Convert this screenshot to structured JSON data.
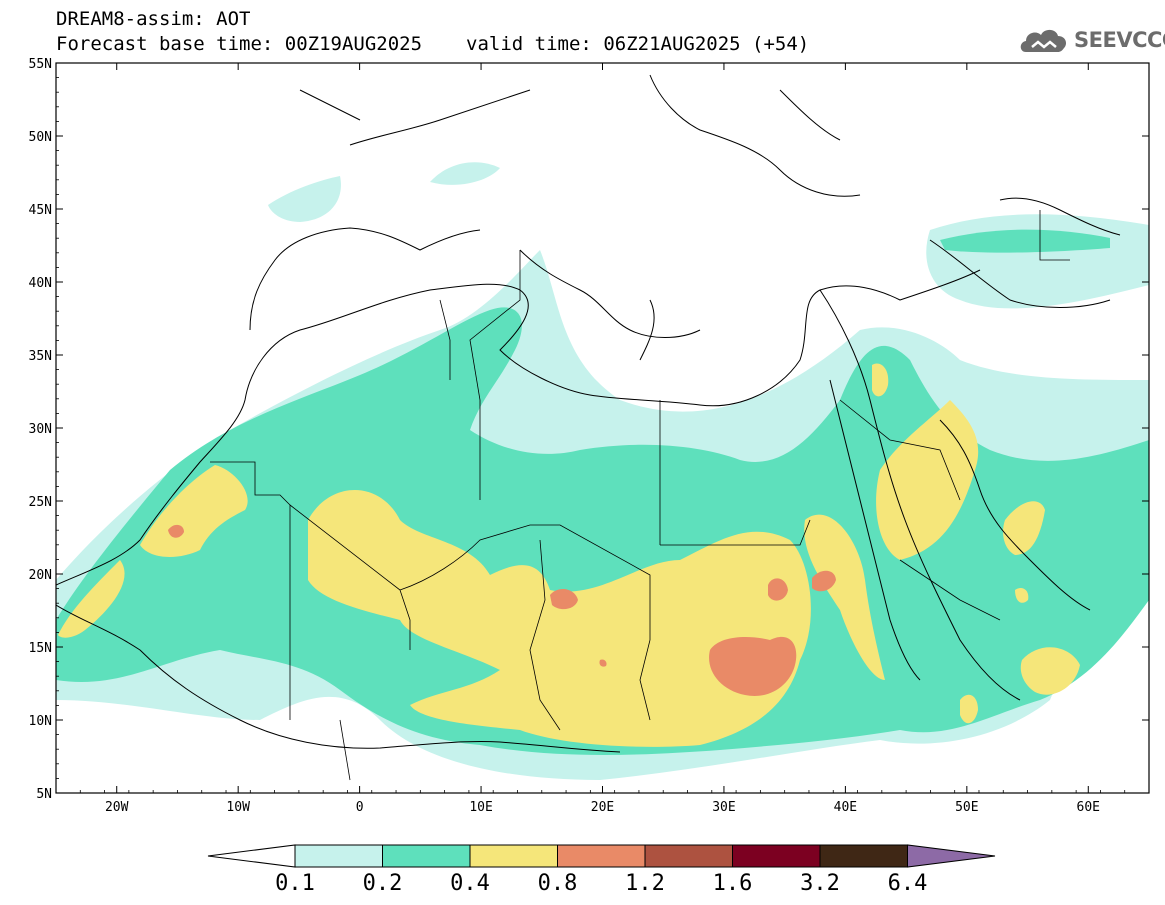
{
  "header": {
    "title_line1": "DREAM8-assim: AOT",
    "base_time": "Forecast base time: 00Z19AUG2025",
    "valid_time": "valid time: 06Z21AUG2025 (+54)"
  },
  "logo": {
    "text": "SEEVCCC",
    "icon": "cloud-icon",
    "color": "#6c6c6c"
  },
  "map": {
    "lat_range": [
      5,
      55
    ],
    "lon_range": [
      -25,
      65
    ],
    "lat_ticks": [
      "5N",
      "10N",
      "15N",
      "20N",
      "25N",
      "30N",
      "35N",
      "40N",
      "45N",
      "50N",
      "55N"
    ],
    "lon_ticks": [
      "20W",
      "10W",
      "0",
      "10E",
      "20E",
      "30E",
      "40E",
      "50E",
      "60E"
    ]
  },
  "colorbar": {
    "labels": [
      "0.1",
      "0.2",
      "0.4",
      "0.8",
      "1.2",
      "1.6",
      "3.2",
      "6.4"
    ],
    "colors": [
      "#c6f2ec",
      "#5ee0bc",
      "#f5e67a",
      "#e98a67",
      "#ad5240",
      "#7c0021",
      "#3f2715",
      "#8d6aa6"
    ],
    "under_color": "#ffffff"
  }
}
